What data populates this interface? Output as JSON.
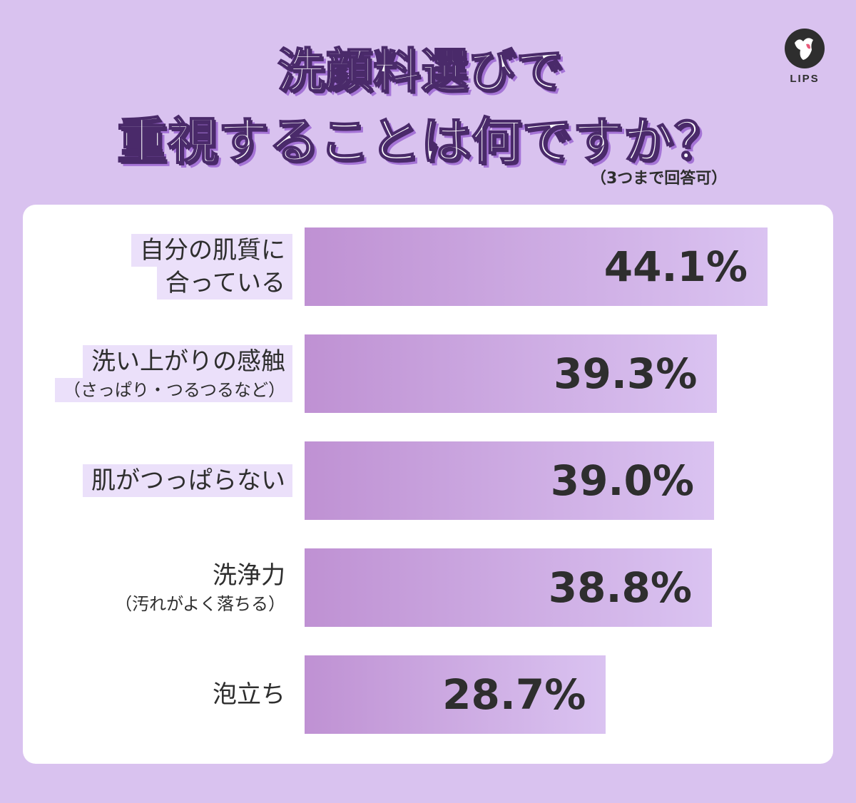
{
  "title": {
    "line1": "洗顔料選びで",
    "line2": "重視することは何ですか？",
    "note": "（3つまで回答可）"
  },
  "logo": {
    "text": "LIPS",
    "icon": "lips-deer-logo-icon",
    "accent": "#e85a7a"
  },
  "colors": {
    "background": "#d9c2ef",
    "bar_start": "#bf91d3",
    "bar_end": "#dac3f1",
    "label_highlight": "#ebe0fa"
  },
  "chart_data": {
    "type": "bar",
    "orientation": "horizontal",
    "unit": "%",
    "xlim": [
      0,
      50
    ],
    "categories": [
      {
        "lines": [
          "自分の肌質に",
          "合っている"
        ],
        "highlight": true,
        "sub": false
      },
      {
        "lines": [
          "洗い上がりの感触",
          "（さっぱり・つるつるなど）"
        ],
        "highlight": true,
        "sub": true
      },
      {
        "lines": [
          "肌がつっぱらない"
        ],
        "highlight": true,
        "sub": false
      },
      {
        "lines": [
          "洗浄力",
          "（汚れがよく落ちる）"
        ],
        "highlight": false,
        "sub": true
      },
      {
        "lines": [
          "泡立ち"
        ],
        "highlight": false,
        "sub": false
      }
    ],
    "values": [
      44.1,
      39.3,
      39.0,
      38.8,
      28.7
    ],
    "value_labels": [
      "44.1%",
      "39.3%",
      "39.0%",
      "38.8%",
      "28.7%"
    ]
  }
}
